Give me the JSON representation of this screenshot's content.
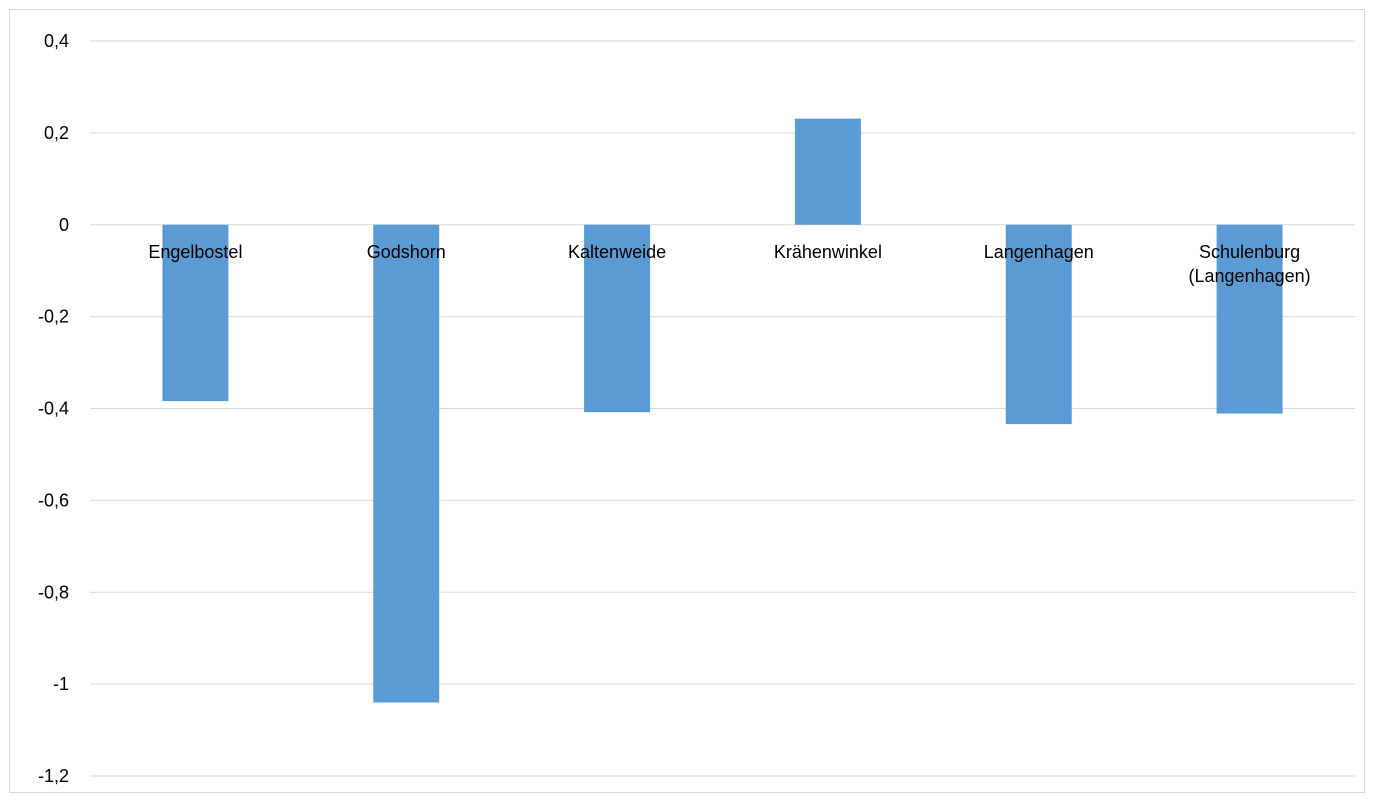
{
  "chart_data": {
    "type": "bar",
    "categories": [
      "Engelbostel",
      "Godshorn",
      "Kaltenweide",
      "Krähenwinkel",
      "Langenhagen",
      "Schulenburg (Langenhagen)"
    ],
    "category_lines": [
      [
        "Engelbostel"
      ],
      [
        "Godshorn"
      ],
      [
        "Kaltenweide"
      ],
      [
        "Krähenwinkel"
      ],
      [
        "Langenhagen"
      ],
      [
        "Schulenburg",
        "(Langenhagen)"
      ]
    ],
    "values": [
      -0.384,
      -1.04,
      -0.408,
      0.231,
      -0.434,
      -0.411
    ],
    "ylim": [
      -1.2,
      0.4
    ],
    "yticks": [
      0.4,
      0.2,
      0,
      -0.2,
      -0.4,
      -0.6,
      -0.8,
      -1,
      -1.2
    ],
    "ytick_labels": [
      "0,4",
      "0,2",
      "0",
      "-0,2",
      "-0,4",
      "-0,6",
      "-0,8",
      "-1",
      "-1,2"
    ],
    "grid": true,
    "bar_color": "#5b9bd5",
    "grid_color": "#d9d9d9"
  }
}
